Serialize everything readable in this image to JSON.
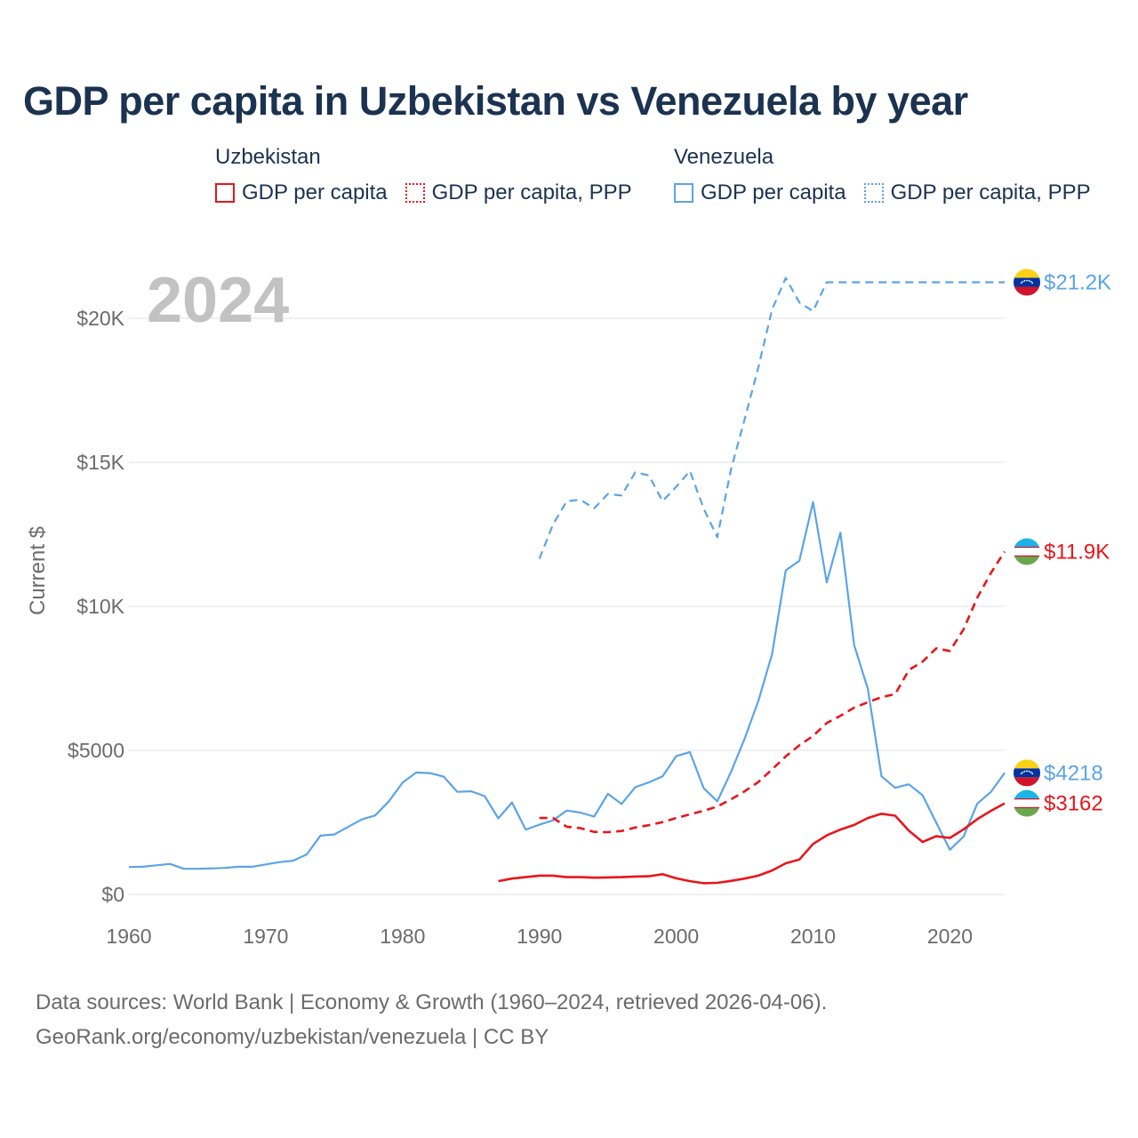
{
  "title": "GDP per capita in Uzbekistan vs Venezuela by year",
  "legend": {
    "groups": [
      {
        "name": "Uzbekistan",
        "color": "#e8161b",
        "items": [
          "GDP per capita",
          "GDP per capita, PPP"
        ]
      },
      {
        "name": "Venezuela",
        "color": "#5ba4e6",
        "items": [
          "GDP per capita",
          "GDP per capita, PPP"
        ]
      }
    ]
  },
  "footer": {
    "line1": "Data sources: World Bank | Economy & Growth (1960–2024, retrieved 2026-04-06).",
    "line2": "GeoRank.org/economy/uzbekistan/venezuela | CC BY"
  },
  "chart_data": {
    "type": "line",
    "year_label": "2024",
    "ylabel": "Current $",
    "xlim": [
      1960,
      2024
    ],
    "ylim": [
      0,
      21200
    ],
    "x_ticks": [
      1960,
      1970,
      1980,
      1990,
      2000,
      2010,
      2020
    ],
    "x_tick_labels": [
      "1960",
      "1970",
      "1980",
      "1990",
      "2000",
      "2010",
      "2020"
    ],
    "y_ticks": [
      0,
      5000,
      10000,
      15000,
      20000
    ],
    "y_tick_labels": [
      "$0",
      "$5000",
      "$10K",
      "$15K",
      "$20K"
    ],
    "series": [
      {
        "name": "Venezuela GDP per capita",
        "country": "Venezuela",
        "style": "solid",
        "color": "#5ba4e6",
        "end_label": "$4218",
        "x": [
          1960,
          1961,
          1962,
          1963,
          1964,
          1965,
          1966,
          1967,
          1968,
          1969,
          1970,
          1971,
          1972,
          1973,
          1974,
          1975,
          1976,
          1977,
          1978,
          1979,
          1980,
          1981,
          1982,
          1983,
          1984,
          1985,
          1986,
          1987,
          1988,
          1989,
          1990,
          1991,
          1992,
          1993,
          1994,
          1995,
          1996,
          1997,
          1998,
          1999,
          2000,
          2001,
          2002,
          2003,
          2004,
          2005,
          2006,
          2007,
          2008,
          2009,
          2010,
          2011,
          2012,
          2013,
          2014,
          2015,
          2016,
          2017,
          2018,
          2019,
          2020,
          2021,
          2022,
          2023,
          2024
        ],
        "values": [
          950,
          960,
          1010,
          1060,
          890,
          890,
          900,
          920,
          960,
          960,
          1040,
          1120,
          1170,
          1390,
          2040,
          2080,
          2340,
          2600,
          2740,
          3230,
          3880,
          4230,
          4210,
          4090,
          3560,
          3580,
          3410,
          2640,
          3190,
          2250,
          2420,
          2570,
          2910,
          2840,
          2700,
          3490,
          3140,
          3720,
          3890,
          4100,
          4800,
          4940,
          3690,
          3230,
          4250,
          5410,
          6720,
          8340,
          11250,
          11580,
          13620,
          10830,
          12560,
          8660,
          7140,
          4100,
          3700,
          3820,
          3440,
          2490,
          1550,
          2010,
          3150,
          3560,
          4218
        ]
      },
      {
        "name": "Venezuela GDP per capita, PPP",
        "country": "Venezuela",
        "style": "dashed",
        "color": "#5ba4e6",
        "end_label": "$21.2K",
        "x": [
          1990,
          1991,
          1992,
          1993,
          1994,
          1995,
          1996,
          1997,
          1998,
          1999,
          2000,
          2001,
          2002,
          2003,
          2004,
          2005,
          2006,
          2007,
          2008,
          2009,
          2010,
          2011,
          2012,
          2013,
          2014,
          2015,
          2016,
          2017,
          2018,
          2019,
          2020,
          2021,
          2022,
          2023,
          2024
        ],
        "values": [
          11650,
          12850,
          13650,
          13700,
          13400,
          13900,
          13850,
          14650,
          14550,
          13650,
          14150,
          14700,
          13400,
          12400,
          14750,
          16500,
          18300,
          20300,
          21400,
          20550,
          20250,
          21250,
          21250,
          21250,
          21250,
          21250,
          21250,
          21250,
          21250,
          21250,
          21250,
          21250,
          21250,
          21250,
          21250
        ]
      },
      {
        "name": "Uzbekistan GDP per capita",
        "country": "Uzbekistan",
        "style": "solid",
        "color": "#e8161b",
        "end_label": "$3162",
        "x": [
          1987,
          1988,
          1989,
          1990,
          1991,
          1992,
          1993,
          1994,
          1995,
          1996,
          1997,
          1998,
          1999,
          2000,
          2001,
          2002,
          2003,
          2004,
          2005,
          2006,
          2007,
          2008,
          2009,
          2010,
          2011,
          2012,
          2013,
          2014,
          2015,
          2016,
          2017,
          2018,
          2019,
          2020,
          2021,
          2022,
          2023,
          2024
        ],
        "values": [
          460,
          550,
          600,
          650,
          650,
          600,
          600,
          580,
          590,
          600,
          620,
          630,
          700,
          560,
          460,
          390,
          400,
          470,
          550,
          650,
          830,
          1080,
          1210,
          1750,
          2050,
          2250,
          2410,
          2650,
          2800,
          2730,
          2210,
          1820,
          2020,
          1960,
          2260,
          2610,
          2900,
          3162
        ]
      },
      {
        "name": "Uzbekistan GDP per capita, PPP",
        "country": "Uzbekistan",
        "style": "dashed",
        "color": "#e8161b",
        "end_label": "$11.9K",
        "x": [
          1990,
          1991,
          1992,
          1993,
          1994,
          1995,
          1996,
          1997,
          1998,
          1999,
          2000,
          2001,
          2002,
          2003,
          2004,
          2005,
          2006,
          2007,
          2008,
          2009,
          2010,
          2011,
          2012,
          2013,
          2014,
          2015,
          2016,
          2017,
          2018,
          2019,
          2020,
          2021,
          2022,
          2023,
          2024
        ],
        "values": [
          2650,
          2650,
          2350,
          2300,
          2170,
          2160,
          2200,
          2320,
          2400,
          2510,
          2650,
          2780,
          2900,
          3050,
          3300,
          3580,
          3900,
          4340,
          4790,
          5180,
          5500,
          5950,
          6200,
          6480,
          6670,
          6850,
          6950,
          7790,
          8080,
          8540,
          8450,
          9200,
          10300,
          11160,
          11900
        ]
      }
    ]
  }
}
